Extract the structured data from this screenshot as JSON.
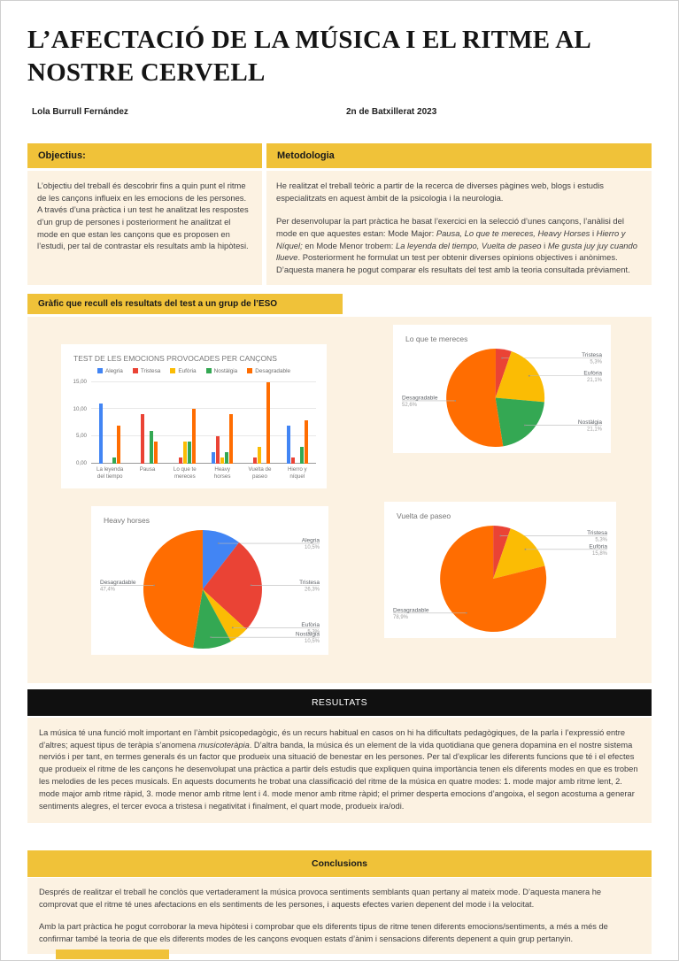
{
  "colors": {
    "accent_yellow": "#F0C239",
    "panel_cream": "#FCF2E2",
    "banner_black": "#101010",
    "series_blue": "#4285F4",
    "series_red": "#EA4335",
    "series_yellow": "#FBBC04",
    "series_green": "#34A853",
    "series_orange": "#FF6D01"
  },
  "header": {
    "title_lines": [
      "L’AFECTACIÓ DE LA MÚSICA I EL RITME AL",
      "NOSTRE CERVELL"
    ],
    "author": "Lola Burrull Fernández",
    "course": "2n de Batxillerat 2023"
  },
  "sections": {
    "objectius": {
      "heading": "Objectius:",
      "body": "L’objectiu del treball és descobrir fins a quin punt el ritme de les cançons influeix en les emocions de les persones. A través d’una pràctica i un test he analitzat les respostes d’un grup de persones i posteriorment he analitzat el mode en que estan les cançons que es proposen en l’estudi, per tal de contrastar els resultats amb la hipòtesi."
    },
    "metodologia": {
      "heading": "Metodologia",
      "para1": "He realitzat el treball teòric a partir de la recerca de diverses pàgines web, blogs i estudis especialitzats en aquest àmbit de la psicologia i la neurologia.",
      "para2": [
        {
          "t": "Per desenvolupar la part pràctica he basat l’exercici en la selecció d’unes cançons, l’anàlisi del mode en que aquestes estan: Mode Major: "
        },
        {
          "t": "Pausa, Lo que te mereces, Heavy Horses",
          "i": true
        },
        {
          "t": " i "
        },
        {
          "t": "Hierro y Níquel;",
          "i": true
        },
        {
          "t": " en Mode Menor trobem: "
        },
        {
          "t": "La leyenda del tiempo, Vuelta de paseo",
          "i": true
        },
        {
          "t": " i "
        },
        {
          "t": "Me gusta juy juy cuando llueve",
          "i": true
        },
        {
          "t": ". Posteriorment he formulat un test per obtenir diverses opinions objectives i anònimes. D’aquesta manera he pogut comparar els resultats del test amb la teoria consultada prèviament."
        }
      ]
    },
    "grafic_banner": "Gràfic que recull els resultats del test a un grup de l’ESO",
    "resultats": {
      "heading": "RESULTATS",
      "body": [
        {
          "t": "La música té una funció molt important en l’àmbit psicopedagògic, és un recurs habitual en casos on hi ha dificultats pedagògiques, de la parla i l’expressió entre d’altres; aquest tipus de teràpia s’anomena "
        },
        {
          "t": "musicoteràpia",
          "i": true
        },
        {
          "t": ". D’altra banda, la música és un element de la vida quotidiana que genera dopamina en el nostre sistema nerviós i per tant, en termes generals és un factor que produeix una situació de benestar en les persones. Per tal d’explicar les diferents funcions que té i el efectes que produeix el ritme de les cançons he desenvolupat una pràctica a partir dels estudis que expliquen quina importància tenen els diferents modes en que es troben les melodies de les peces musicals. En aquests documents he trobat una classificació del ritme de la música en quatre modes: 1. mode major amb ritme lent, 2. mode major amb ritme ràpid, 3. mode menor amb ritme lent i 4. mode menor amb ritme ràpid; el primer desperta emocions d’angoixa, el segon acostuma a generar sentiments alegres, el tercer evoca a tristesa i negativitat i finalment, el quart mode, produeix ira/odi."
        }
      ]
    },
    "conclusions": {
      "heading": "Conclusions",
      "para1": "Després de realitzar el treball he conclòs que vertaderament la música provoca sentiments semblants quan pertany al mateix mode. D’aquesta manera he comprovat que el ritme té unes afectacions en els sentiments de les persones, i aquests efectes varien depenent del mode i la velocitat.",
      "para2": "Amb la part pràctica he pogut corroborar la meva hipòtesi i comprobar que els diferents tipus de ritme tenen diferents emocions/sentiments, a més a més de confirmar també la teoria de que els diferents modes de les cançons evoquen estats d’ànim i sensacions diferents depenent a quin grup pertanyin."
    }
  },
  "chart_data": [
    {
      "type": "bar",
      "title": "TEST DE LES EMOCIONS PROVOCADES PER CANÇONS",
      "categories": [
        "La leyenda del tiempo",
        "Pausa",
        "Lo que te mereces",
        "Heavy horses",
        "Vuelta de paseo",
        "Hierro y níquel"
      ],
      "series": [
        {
          "name": "Alegria",
          "color": "#4285F4",
          "values": [
            11,
            0,
            0,
            2,
            0,
            7
          ]
        },
        {
          "name": "Tristesa",
          "color": "#EA4335",
          "values": [
            0,
            9,
            1,
            5,
            1,
            1
          ]
        },
        {
          "name": "Eufòria",
          "color": "#FBBC04",
          "values": [
            0,
            0,
            4,
            1,
            3,
            0
          ]
        },
        {
          "name": "Nostàlgia",
          "color": "#34A853",
          "values": [
            1,
            6,
            4,
            2,
            0,
            3
          ]
        },
        {
          "name": "Desagradable",
          "color": "#FF6D01",
          "values": [
            7,
            4,
            10,
            9,
            15,
            8
          ]
        }
      ],
      "ylim": [
        0,
        15
      ],
      "yticks": [
        {
          "v": 0,
          "label": "0,00"
        },
        {
          "v": 5,
          "label": "5,00"
        },
        {
          "v": 10,
          "label": "10,00"
        },
        {
          "v": 15,
          "label": "15,00"
        }
      ],
      "grid": true,
      "legend_position": "top"
    },
    {
      "type": "pie",
      "title": "Lo que te mereces",
      "slices": [
        {
          "label": "Tristesa",
          "pct": 5.3,
          "pct_label": "5,3%",
          "color": "#EA4335"
        },
        {
          "label": "Eufòria",
          "pct": 21.1,
          "pct_label": "21,1%",
          "color": "#FBBC04"
        },
        {
          "label": "Nostàlgia",
          "pct": 21.1,
          "pct_label": "21,1%",
          "color": "#34A853"
        },
        {
          "label": "Desagradable",
          "pct": 52.6,
          "pct_label": "52,6%",
          "color": "#FF6D01"
        }
      ]
    },
    {
      "type": "pie",
      "title": "Heavy horses",
      "slices": [
        {
          "label": "Alegria",
          "pct": 10.5,
          "pct_label": "10,5%",
          "color": "#4285F4"
        },
        {
          "label": "Tristesa",
          "pct": 26.3,
          "pct_label": "26,3%",
          "color": "#EA4335"
        },
        {
          "label": "Eufòria",
          "pct": 5.3,
          "pct_label": "5,3%",
          "color": "#FBBC04"
        },
        {
          "label": "Nostàlgia",
          "pct": 10.5,
          "pct_label": "10,5%",
          "color": "#34A853"
        },
        {
          "label": "Desagradable",
          "pct": 47.4,
          "pct_label": "47,4%",
          "color": "#FF6D01"
        }
      ]
    },
    {
      "type": "pie",
      "title": "Vuelta de paseo",
      "slices": [
        {
          "label": "Tristesa",
          "pct": 5.3,
          "pct_label": "5,3%",
          "color": "#EA4335"
        },
        {
          "label": "Eufòria",
          "pct": 15.8,
          "pct_label": "15,8%",
          "color": "#FBBC04"
        },
        {
          "label": "Desagradable",
          "pct": 78.9,
          "pct_label": "78,9%",
          "color": "#FF6D01"
        }
      ]
    }
  ]
}
